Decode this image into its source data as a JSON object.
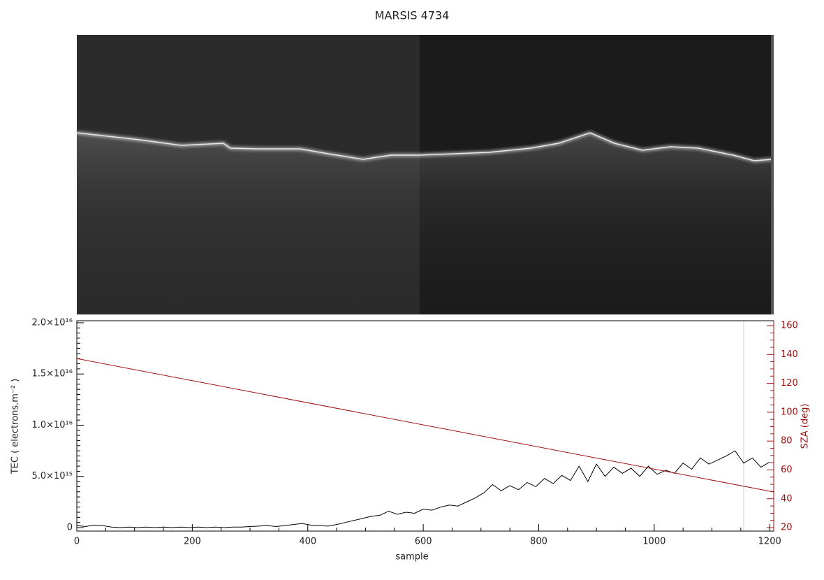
{
  "chart_data": {
    "type": "line",
    "title": "MARSIS 4734",
    "x_label": "sample",
    "y_label": "TEC ( electrons.m⁻² )",
    "y2_label": "SZA (deg)",
    "xlim": [
      0,
      1207
    ],
    "xticks": [
      0,
      200,
      400,
      600,
      800,
      1000,
      1200
    ],
    "ylim": [
      -340000000000000.0,
      2.02e+16
    ],
    "yticks": [
      0,
      {
        "value": 5000000000000000.0,
        "label": "5.0×10¹⁵"
      },
      {
        "value": 1e+16,
        "label": "1.0×10¹⁶"
      },
      {
        "value": 1.5e+16,
        "label": "1.5×10¹⁶"
      },
      {
        "value": 2e+16,
        "label": "2.0×10¹⁶"
      }
    ],
    "y2lim": [
      17.6,
      163.4
    ],
    "y2ticks": [
      20,
      40,
      60,
      80,
      100,
      120,
      140,
      160
    ],
    "series": [
      {
        "color": "#000000",
        "axis": "y",
        "x": [
          0,
          15,
          30,
          45,
          60,
          75,
          90,
          105,
          120,
          135,
          150,
          165,
          180,
          195,
          210,
          225,
          240,
          255,
          270,
          285,
          300,
          315,
          330,
          345,
          360,
          375,
          390,
          405,
          420,
          435,
          450,
          465,
          480,
          495,
          510,
          525,
          540,
          555,
          570,
          585,
          600,
          615,
          630,
          645,
          660,
          675,
          690,
          705,
          720,
          735,
          750,
          765,
          780,
          795,
          810,
          825,
          840,
          855,
          870,
          885,
          900,
          915,
          930,
          945,
          960,
          975,
          990,
          1005,
          1020,
          1035,
          1050,
          1065,
          1080,
          1095,
          1110,
          1125,
          1140,
          1155,
          1170,
          1185,
          1200
        ],
        "values": [
          200000000000000.0,
          100000000000000.0,
          250000000000000.0,
          200000000000000.0,
          50000000000000.0,
          0,
          50000000000000.0,
          0,
          50000000000000.0,
          0,
          50000000000000.0,
          0,
          50000000000000.0,
          0,
          50000000000000.0,
          0,
          50000000000000.0,
          0,
          50000000000000.0,
          50000000000000.0,
          100000000000000.0,
          150000000000000.0,
          200000000000000.0,
          100000000000000.0,
          200000000000000.0,
          300000000000000.0,
          400000000000000.0,
          250000000000000.0,
          200000000000000.0,
          150000000000000.0,
          300000000000000.0,
          500000000000000.0,
          700000000000000.0,
          900000000000000.0,
          1100000000000000.0,
          1200000000000000.0,
          1600000000000000.0,
          1300000000000000.0,
          1500000000000000.0,
          1400000000000000.0,
          1800000000000000.0,
          1700000000000000.0,
          2000000000000000.0,
          2200000000000000.0,
          2100000000000000.0,
          2500000000000000.0,
          2900000000000000.0,
          3400000000000000.0,
          4200000000000000.0,
          3600000000000000.0,
          4100000000000000.0,
          3700000000000000.0,
          4400000000000000.0,
          4000000000000000.0,
          4800000000000000.0,
          4300000000000000.0,
          5100000000000000.0,
          4600000000000000.0,
          6000000000000000.0,
          4500000000000000.0,
          6200000000000000.0,
          5000000000000000.0,
          5900000000000000.0,
          5300000000000000.0,
          5800000000000000.0,
          5000000000000000.0,
          6000000000000000.0,
          5200000000000000.0,
          5600000000000000.0,
          5300000000000000.0,
          6300000000000000.0,
          5700000000000000.0,
          6800000000000000.0,
          6200000000000000.0,
          6600000000000000.0,
          7000000000000000.0,
          7500000000000000.0,
          6300000000000000.0,
          6800000000000000.0,
          5900000000000000.0,
          6400000000000000.0
        ]
      },
      {
        "color": "#a01010",
        "axis": "y2",
        "x": [
          0,
          1207
        ],
        "values": [
          137.2,
          44.7
        ]
      }
    ]
  }
}
